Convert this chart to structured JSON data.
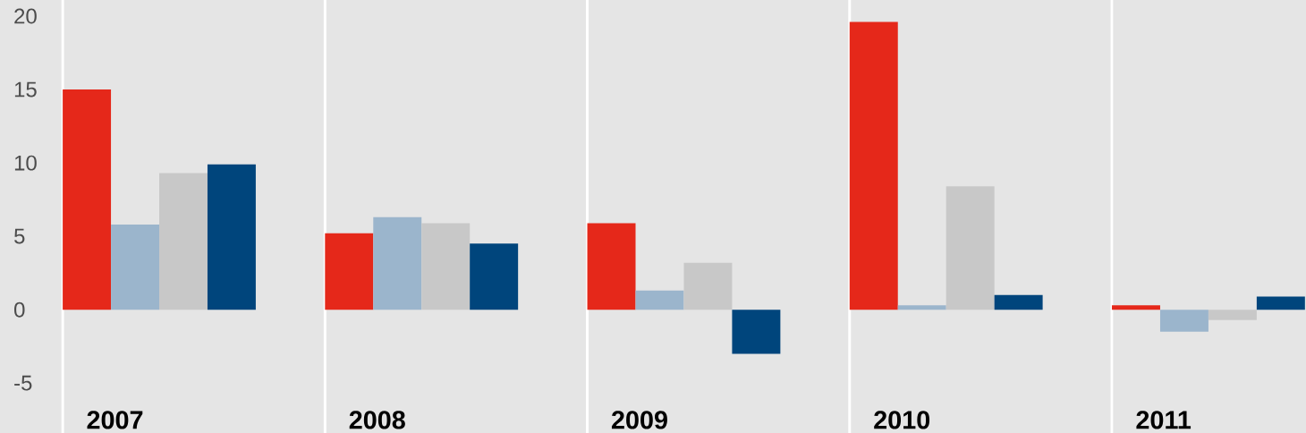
{
  "chart_data": {
    "type": "bar",
    "categories": [
      "2007",
      "2008",
      "2009",
      "2010",
      "2011"
    ],
    "series": [
      {
        "color": "#e5281a",
        "values": [
          15,
          5.2,
          5.9,
          19.6,
          0.3
        ]
      },
      {
        "color": "#9bb5cc",
        "values": [
          5.8,
          6.3,
          1.3,
          0.3,
          -1.5
        ]
      },
      {
        "color": "#c8c8c8",
        "values": [
          9.3,
          5.9,
          3.2,
          8.4,
          -0.7
        ]
      },
      {
        "color": "#00457c",
        "values": [
          9.9,
          4.5,
          -3.0,
          1.0,
          0.9
        ]
      }
    ],
    "ylim": [
      -8.4,
      21.1
    ],
    "yticks": [
      -5,
      0,
      5,
      10,
      15,
      20
    ],
    "grid": "x"
  }
}
